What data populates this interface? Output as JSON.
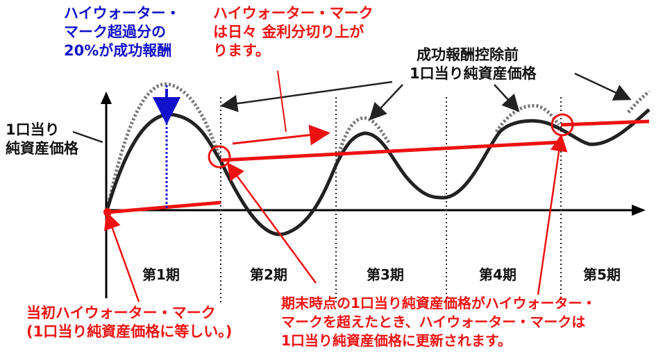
{
  "annotations": {
    "success_fee": [
      "ハイウォーター・",
      "マーク超過分の",
      "20%が成功報酬"
    ],
    "hwm_daily_rise": [
      "ハイウォーター・マーク",
      "は日々 金利分切り上が",
      "ります。"
    ],
    "nav_before_fee": [
      "成功報酬控除前",
      "1口当り純資産価格"
    ],
    "nav": [
      "1口当り",
      "純資産価格"
    ],
    "initial_hwm": [
      "当初ハイウォーター・マーク",
      "(1口当り純資産価格に等しい。)"
    ],
    "hwm_update": [
      "期末時点の1口当り純資産価格がハイウォーター・",
      "マークを超えたとき、ハイウォーター・マークは",
      "1口当り純資産価格に更新されます。"
    ]
  },
  "periods": [
    "第1期",
    "第2期",
    "第3期",
    "第4期",
    "第5期"
  ],
  "colors": {
    "nav_line": "#222222",
    "pre_fee_line": "#777777",
    "hwm_line": "#ee1111",
    "success_fee_marker": "#1111cc",
    "axis": "#000000"
  }
}
